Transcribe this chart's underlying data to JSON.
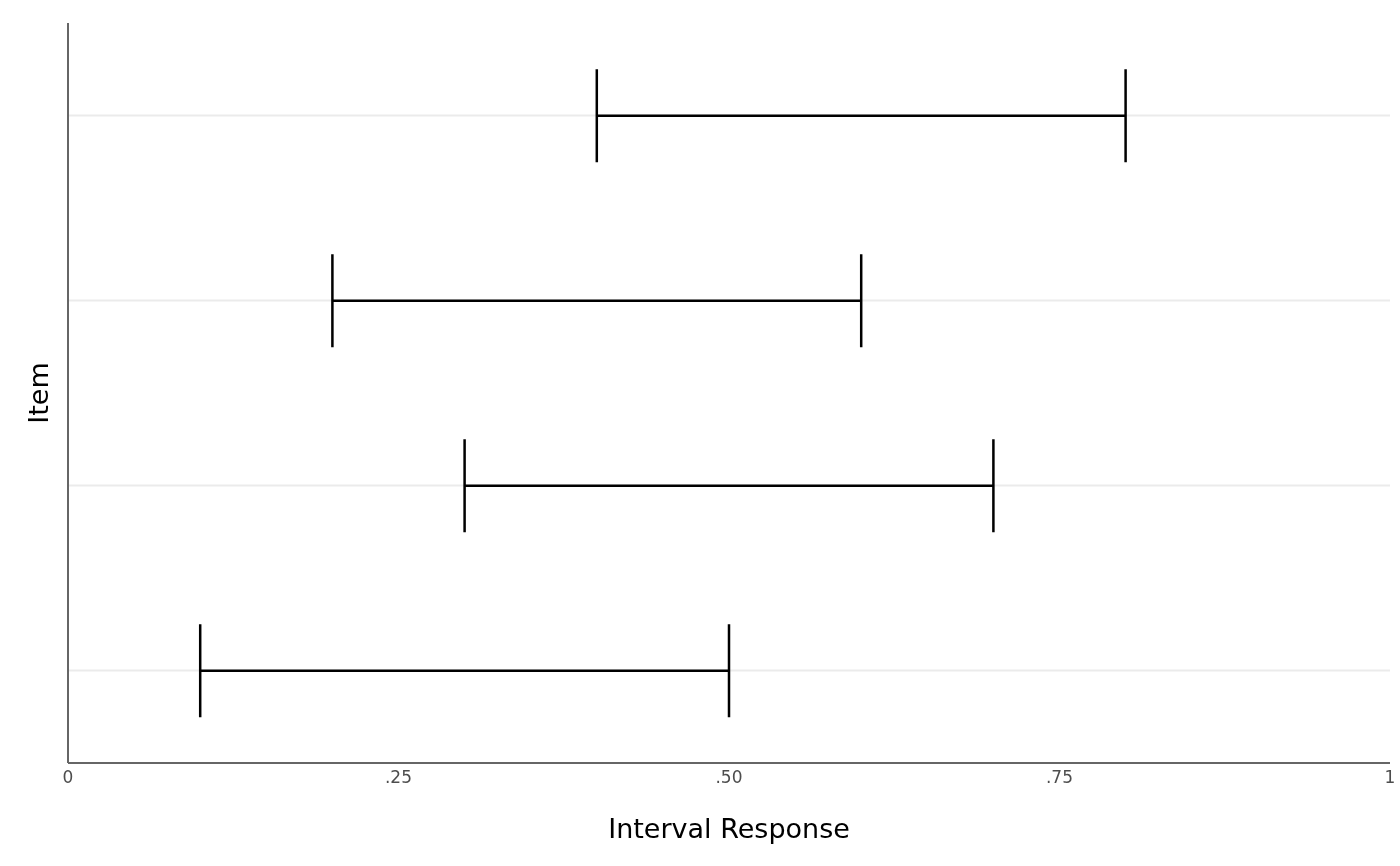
{
  "chart_data": {
    "type": "bar",
    "orientation": "horizontal",
    "xlabel": "Interval Response",
    "ylabel": "Item",
    "categories": [
      null,
      null,
      null,
      null
    ],
    "base": [
      0.4,
      0.2,
      0.3,
      0.1
    ],
    "values": [
      0.4,
      0.4,
      0.4,
      0.4
    ],
    "color": "#000000",
    "xlim": [
      0,
      1
    ],
    "xticks": [
      {
        "value": 0,
        "label": "0"
      },
      {
        "value": 0.25,
        "label": ".25"
      },
      {
        "value": 0.5,
        "label": ".50"
      },
      {
        "value": 0.75,
        "label": ".75"
      },
      {
        "value": 1,
        "label": "1"
      }
    ],
    "grid": "y"
  }
}
